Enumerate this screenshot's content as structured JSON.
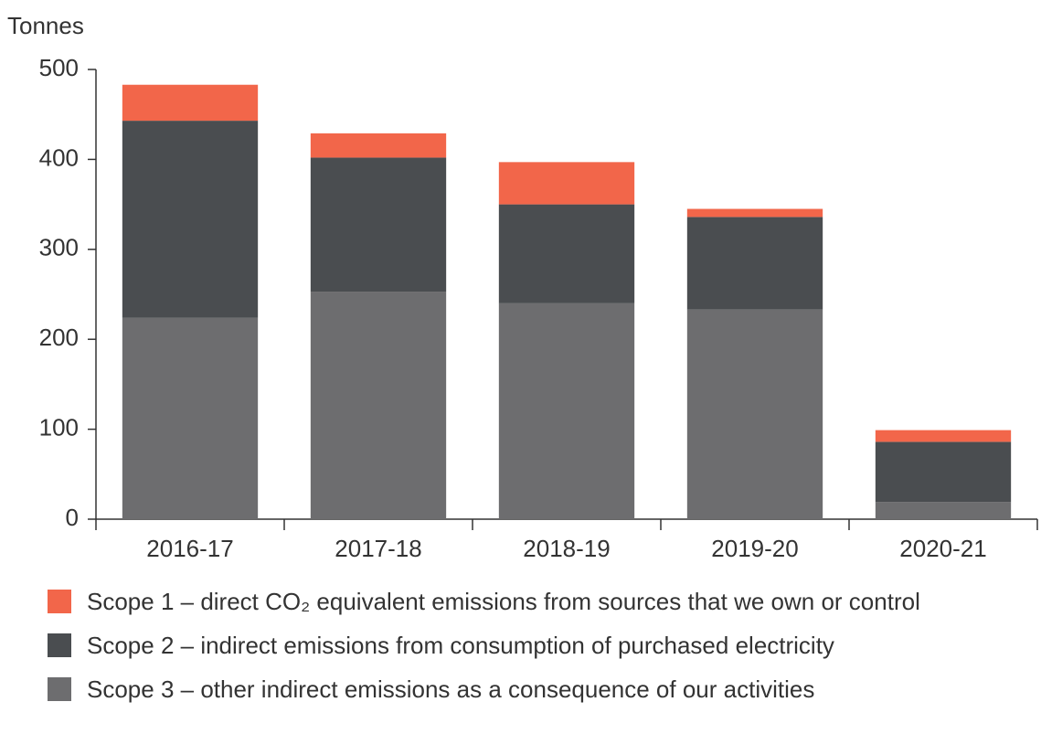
{
  "chart_data": {
    "type": "stacked_bar",
    "y_label": "Tonnes",
    "categories": [
      "2016-17",
      "2017-18",
      "2018-19",
      "2019-20",
      "2020-21"
    ],
    "series": [
      {
        "name": "Scope 1 – direct CO₂ equivalent emissions from sources that we own or control",
        "color": "#f2664a",
        "values": [
          40,
          27,
          47,
          9,
          13
        ]
      },
      {
        "name": "Scope 2 – indirect emissions from consumption of purchased electricity",
        "color": "#4a4d50",
        "values": [
          219,
          149,
          110,
          103,
          67
        ]
      },
      {
        "name": "Scope 3 – other indirect emissions as a consequence of our activities",
        "color": "#6d6d6f",
        "values": [
          224,
          253,
          240,
          233,
          19
        ]
      }
    ],
    "ylim": [
      0,
      500
    ],
    "yticks": [
      0,
      100,
      200,
      300,
      400,
      500
    ],
    "grid": false,
    "legend": "bottom"
  }
}
